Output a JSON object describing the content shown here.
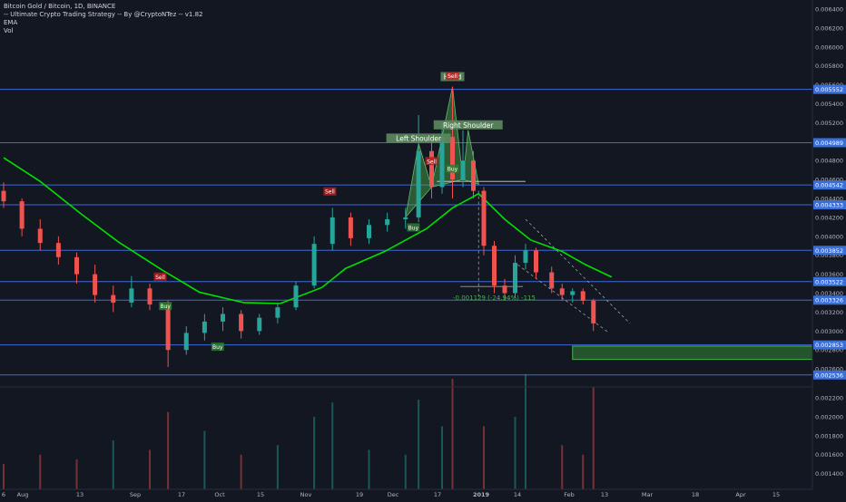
{
  "legend": {
    "symbol": "Bitcoin Gold / Bitcoin, 1D, BINANCE",
    "strategy": "-- Ultimate Crypto Trading Strategy -- By @CryptoNTez -- v1.82",
    "ema": "EMA",
    "vol": "Vol"
  },
  "colors": {
    "background": "#131722",
    "up": "#26a69a",
    "down": "#ef5350",
    "ema": "#00e000",
    "hline": "#3d6ad8",
    "label_bg": "#3b6fd6",
    "zone": "#2e7d32"
  },
  "chart_data": {
    "type": "candlestick",
    "price_axis_labels": [
      "0.006400",
      "0.006200",
      "0.006000",
      "0.005800",
      "0.005600",
      "0.005400",
      "0.005200",
      "0.005000",
      "0.004800",
      "0.004600",
      "0.004400",
      "0.004200",
      "0.004000",
      "0.003800",
      "0.003600",
      "0.003400",
      "0.003200",
      "0.003000",
      "0.002800",
      "0.002600"
    ],
    "volume_axis_labels": [
      "0.002200",
      "0.002000",
      "0.001800",
      "0.001600",
      "0.001400"
    ],
    "time_axis_labels": [
      "6",
      "Aug",
      "13",
      "Sep",
      "17",
      "Oct",
      "15",
      "Nov",
      "19",
      "Dec",
      "17",
      "2019",
      "14",
      "Feb",
      "13",
      "Mar",
      "18",
      "Apr",
      "15"
    ],
    "horizontal_levels": [
      "0.005552",
      "0.004989",
      "0.004542",
      "0.004333",
      "0.003852",
      "0.003522",
      "0.003326",
      "0.002853",
      "0.002536"
    ],
    "annotations": {
      "left_shoulder": "Left Shoulder",
      "right_shoulder": "Right Shoulder",
      "head": "Head",
      "measure": "-0.001129 (-24.94%) -115",
      "signals": [
        {
          "text": "Sell",
          "date": "2018-08-05",
          "value": 0.00356
        },
        {
          "text": "Buy",
          "date": "2018-08-07",
          "value": 0.00325
        },
        {
          "text": "Buy",
          "date": "2018-08-27",
          "value": 0.00282
        },
        {
          "text": "Sell",
          "date": "2018-10-09",
          "value": 0.00446
        },
        {
          "text": "Sell",
          "date": "2018-11-17",
          "value": 0.00478
        },
        {
          "text": "Buy",
          "date": "2018-11-10",
          "value": 0.00408
        },
        {
          "text": "Sell",
          "date": "2018-11-25",
          "value": 0.00568
        },
        {
          "text": "Buy",
          "date": "2018-11-25",
          "value": 0.0047
        }
      ]
    },
    "ema_series": [
      {
        "date": "2018-06-06",
        "value": 0.00483
      },
      {
        "date": "2018-06-20",
        "value": 0.00458
      },
      {
        "date": "2018-07-06",
        "value": 0.00423
      },
      {
        "date": "2018-07-20",
        "value": 0.00394
      },
      {
        "date": "2018-08-06",
        "value": 0.00364
      },
      {
        "date": "2018-08-20",
        "value": 0.00341
      },
      {
        "date": "2018-09-06",
        "value": 0.0033
      },
      {
        "date": "2018-09-20",
        "value": 0.00329
      },
      {
        "date": "2018-10-06",
        "value": 0.00346
      },
      {
        "date": "2018-10-15",
        "value": 0.00366
      },
      {
        "date": "2018-10-30",
        "value": 0.00384
      },
      {
        "date": "2018-11-15",
        "value": 0.00408
      },
      {
        "date": "2018-11-25",
        "value": 0.0043
      },
      {
        "date": "2018-12-05",
        "value": 0.00445
      },
      {
        "date": "2018-12-15",
        "value": 0.00418
      },
      {
        "date": "2018-12-25",
        "value": 0.00396
      },
      {
        "date": "2019-01-06",
        "value": 0.00384
      },
      {
        "date": "2019-01-15",
        "value": 0.0037
      },
      {
        "date": "2019-01-25",
        "value": 0.00357
      }
    ],
    "candles": [
      {
        "date": "2018-06-06",
        "o": 0.00448,
        "h": 0.00457,
        "l": 0.0043,
        "c": 0.00437
      },
      {
        "date": "2018-06-13",
        "o": 0.00437,
        "h": 0.0044,
        "l": 0.004,
        "c": 0.00408
      },
      {
        "date": "2018-06-20",
        "o": 0.00408,
        "h": 0.00418,
        "l": 0.00385,
        "c": 0.00393
      },
      {
        "date": "2018-06-27",
        "o": 0.00393,
        "h": 0.004,
        "l": 0.0037,
        "c": 0.00378
      },
      {
        "date": "2018-07-04",
        "o": 0.00378,
        "h": 0.00383,
        "l": 0.0035,
        "c": 0.0036
      },
      {
        "date": "2018-07-11",
        "o": 0.0036,
        "h": 0.0037,
        "l": 0.0033,
        "c": 0.00338
      },
      {
        "date": "2018-07-18",
        "o": 0.00338,
        "h": 0.00348,
        "l": 0.0032,
        "c": 0.0033
      },
      {
        "date": "2018-07-25",
        "o": 0.0033,
        "h": 0.00358,
        "l": 0.00325,
        "c": 0.00345
      },
      {
        "date": "2018-08-01",
        "o": 0.00345,
        "h": 0.0035,
        "l": 0.00322,
        "c": 0.00328
      },
      {
        "date": "2018-08-08",
        "o": 0.00328,
        "h": 0.00332,
        "l": 0.00262,
        "c": 0.0028
      },
      {
        "date": "2018-08-15",
        "o": 0.0028,
        "h": 0.00305,
        "l": 0.00275,
        "c": 0.00298
      },
      {
        "date": "2018-08-22",
        "o": 0.00298,
        "h": 0.00318,
        "l": 0.0029,
        "c": 0.0031
      },
      {
        "date": "2018-08-29",
        "o": 0.0031,
        "h": 0.00325,
        "l": 0.003,
        "c": 0.00318
      },
      {
        "date": "2018-09-05",
        "o": 0.00318,
        "h": 0.00322,
        "l": 0.00292,
        "c": 0.003
      },
      {
        "date": "2018-09-12",
        "o": 0.003,
        "h": 0.00318,
        "l": 0.00296,
        "c": 0.00314
      },
      {
        "date": "2018-09-19",
        "o": 0.00314,
        "h": 0.0033,
        "l": 0.00308,
        "c": 0.00325
      },
      {
        "date": "2018-09-26",
        "o": 0.00325,
        "h": 0.00352,
        "l": 0.00322,
        "c": 0.00348
      },
      {
        "date": "2018-10-03",
        "o": 0.00348,
        "h": 0.004,
        "l": 0.00345,
        "c": 0.00392
      },
      {
        "date": "2018-10-10",
        "o": 0.00392,
        "h": 0.0043,
        "l": 0.00385,
        "c": 0.0042
      },
      {
        "date": "2018-10-17",
        "o": 0.0042,
        "h": 0.00425,
        "l": 0.0039,
        "c": 0.00398
      },
      {
        "date": "2018-10-24",
        "o": 0.00398,
        "h": 0.00418,
        "l": 0.00392,
        "c": 0.00412
      },
      {
        "date": "2018-10-31",
        "o": 0.00412,
        "h": 0.00425,
        "l": 0.00405,
        "c": 0.00418
      },
      {
        "date": "2018-11-07",
        "o": 0.00418,
        "h": 0.0043,
        "l": 0.00408,
        "c": 0.0042
      },
      {
        "date": "2018-11-12",
        "o": 0.0042,
        "h": 0.00528,
        "l": 0.00415,
        "c": 0.0049
      },
      {
        "date": "2018-11-17",
        "o": 0.0049,
        "h": 0.005,
        "l": 0.0044,
        "c": 0.00452
      },
      {
        "date": "2018-11-21",
        "o": 0.00452,
        "h": 0.0052,
        "l": 0.00445,
        "c": 0.00505
      },
      {
        "date": "2018-11-25",
        "o": 0.00505,
        "h": 0.00558,
        "l": 0.0044,
        "c": 0.0046
      },
      {
        "date": "2018-11-29",
        "o": 0.0046,
        "h": 0.00512,
        "l": 0.00452,
        "c": 0.0048
      },
      {
        "date": "2018-12-03",
        "o": 0.0048,
        "h": 0.0049,
        "l": 0.0044,
        "c": 0.00448
      },
      {
        "date": "2018-12-07",
        "o": 0.00448,
        "h": 0.00452,
        "l": 0.0038,
        "c": 0.0039
      },
      {
        "date": "2018-12-11",
        "o": 0.0039,
        "h": 0.00395,
        "l": 0.0034,
        "c": 0.00348
      },
      {
        "date": "2018-12-15",
        "o": 0.00348,
        "h": 0.00355,
        "l": 0.00332,
        "c": 0.0034
      },
      {
        "date": "2018-12-19",
        "o": 0.0034,
        "h": 0.0038,
        "l": 0.00335,
        "c": 0.00372
      },
      {
        "date": "2018-12-23",
        "o": 0.00372,
        "h": 0.00392,
        "l": 0.00365,
        "c": 0.00385
      },
      {
        "date": "2018-12-27",
        "o": 0.00385,
        "h": 0.00388,
        "l": 0.00355,
        "c": 0.00362
      },
      {
        "date": "2019-01-02",
        "o": 0.00362,
        "h": 0.00368,
        "l": 0.0034,
        "c": 0.00345
      },
      {
        "date": "2019-01-06",
        "o": 0.00345,
        "h": 0.0035,
        "l": 0.00332,
        "c": 0.00338
      },
      {
        "date": "2019-01-10",
        "o": 0.00338,
        "h": 0.00345,
        "l": 0.0033,
        "c": 0.00342
      },
      {
        "date": "2019-01-14",
        "o": 0.00342,
        "h": 0.00345,
        "l": 0.00328,
        "c": 0.00332
      },
      {
        "date": "2019-01-18",
        "o": 0.00332,
        "h": 0.00334,
        "l": 0.003,
        "c": 0.00308
      }
    ],
    "volumes": [
      {
        "date": "2018-06-06",
        "v": 0.0015,
        "up": false
      },
      {
        "date": "2018-06-20",
        "v": 0.0016,
        "up": false
      },
      {
        "date": "2018-07-04",
        "v": 0.00155,
        "up": false
      },
      {
        "date": "2018-07-18",
        "v": 0.00175,
        "up": true
      },
      {
        "date": "2018-08-01",
        "v": 0.00165,
        "up": false
      },
      {
        "date": "2018-08-08",
        "v": 0.00205,
        "up": false
      },
      {
        "date": "2018-08-22",
        "v": 0.00185,
        "up": true
      },
      {
        "date": "2018-09-05",
        "v": 0.0016,
        "up": false
      },
      {
        "date": "2018-09-19",
        "v": 0.0017,
        "up": true
      },
      {
        "date": "2018-10-03",
        "v": 0.002,
        "up": true
      },
      {
        "date": "2018-10-10",
        "v": 0.00215,
        "up": true
      },
      {
        "date": "2018-10-24",
        "v": 0.00165,
        "up": true
      },
      {
        "date": "2018-11-07",
        "v": 0.0016,
        "up": true
      },
      {
        "date": "2018-11-12",
        "v": 0.00218,
        "up": true
      },
      {
        "date": "2018-11-21",
        "v": 0.0019,
        "up": true
      },
      {
        "date": "2018-11-25",
        "v": 0.0024,
        "up": false
      },
      {
        "date": "2018-12-07",
        "v": 0.0019,
        "up": false
      },
      {
        "date": "2018-12-19",
        "v": 0.002,
        "up": true
      },
      {
        "date": "2018-12-23",
        "v": 0.00245,
        "up": true
      },
      {
        "date": "2019-01-06",
        "v": 0.0017,
        "up": false
      },
      {
        "date": "2019-01-14",
        "v": 0.0016,
        "up": false
      },
      {
        "date": "2019-01-18",
        "v": 0.00232,
        "up": false
      }
    ],
    "target_zone": {
      "from": "2019-01-10",
      "to": "2019-04-15",
      "top": 0.00284,
      "bottom": 0.0027
    }
  }
}
